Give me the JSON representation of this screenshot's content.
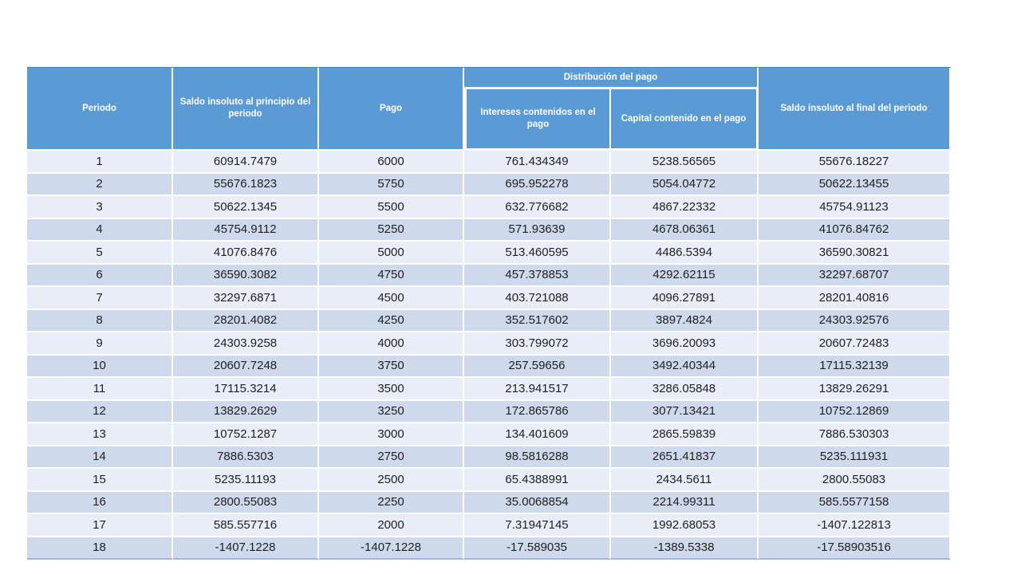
{
  "colors": {
    "header_bg": "#5B9BD5",
    "header_text": "#FFFFFF",
    "row_light": "#E9EDF7",
    "row_dark": "#CFD9EC",
    "grid": "#FFFFFF",
    "data_text": "#1F1F1F",
    "bottom_line": "#9FB6D8",
    "top_line": "#4D83BC"
  },
  "chart_data": {
    "type": "table",
    "columns": [
      "Periodo",
      "Saldo insoluto al principio del periodo",
      "Pago",
      "Intereses contenidos en el pago",
      "Capital contenido en el pago",
      "Saldo insoluto al final del periodo"
    ],
    "group_header": {
      "label": "Distribución del pago",
      "covers_columns": [
        "Intereses contenidos en el pago",
        "Capital contenido en el pago"
      ]
    },
    "rows": [
      [
        "1",
        "60914.7479",
        "6000",
        "761.434349",
        "5238.56565",
        "55676.18227"
      ],
      [
        "2",
        "55676.1823",
        "5750",
        "695.952278",
        "5054.04772",
        "50622.13455"
      ],
      [
        "3",
        "50622.1345",
        "5500",
        "632.776682",
        "4867.22332",
        "45754.91123"
      ],
      [
        "4",
        "45754.9112",
        "5250",
        "571.93639",
        "4678.06361",
        "41076.84762"
      ],
      [
        "5",
        "41076.8476",
        "5000",
        "513.460595",
        "4486.5394",
        "36590.30821"
      ],
      [
        "6",
        "36590.3082",
        "4750",
        "457.378853",
        "4292.62115",
        "32297.68707"
      ],
      [
        "7",
        "32297.6871",
        "4500",
        "403.721088",
        "4096.27891",
        "28201.40816"
      ],
      [
        "8",
        "28201.4082",
        "4250",
        "352.517602",
        "3897.4824",
        "24303.92576"
      ],
      [
        "9",
        "24303.9258",
        "4000",
        "303.799072",
        "3696.20093",
        "20607.72483"
      ],
      [
        "10",
        "20607.7248",
        "3750",
        "257.59656",
        "3492.40344",
        "17115.32139"
      ],
      [
        "11",
        "17115.3214",
        "3500",
        "213.941517",
        "3286.05848",
        "13829.26291"
      ],
      [
        "12",
        "13829.2629",
        "3250",
        "172.865786",
        "3077.13421",
        "10752.12869"
      ],
      [
        "13",
        "10752.1287",
        "3000",
        "134.401609",
        "2865.59839",
        "7886.530303"
      ],
      [
        "14",
        "7886.5303",
        "2750",
        "98.5816288",
        "2651.41837",
        "5235.111931"
      ],
      [
        "15",
        "5235.11193",
        "2500",
        "65.4388991",
        "2434.5611",
        "2800.55083"
      ],
      [
        "16",
        "2800.55083",
        "2250",
        "35.0068854",
        "2214.99311",
        "585.5577158"
      ],
      [
        "17",
        "585.557716",
        "2000",
        "7.31947145",
        "1992.68053",
        "-1407.122813"
      ],
      [
        "18",
        "-1407.1228",
        "-1407.1228",
        "-17.589035",
        "-1389.5338",
        "-17.58903516"
      ]
    ]
  }
}
